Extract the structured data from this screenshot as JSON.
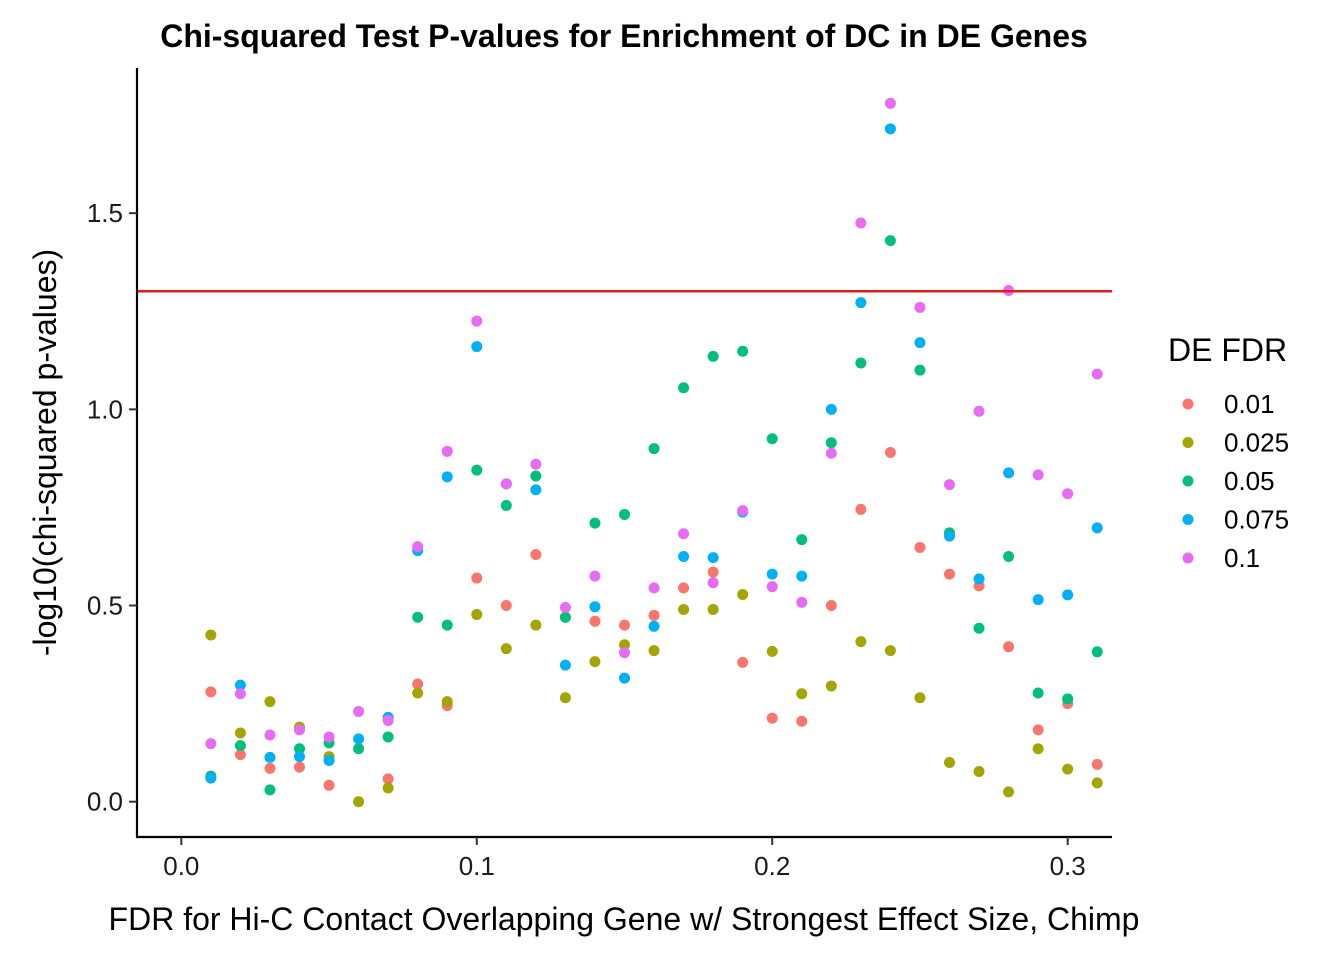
{
  "chart_data": {
    "type": "scatter",
    "title": "Chi-squared Test P-values for Enrichment of DC in DE Genes",
    "xlabel": "FDR for Hi-C Contact Overlapping Gene w/ Strongest Effect Size, Chimp",
    "ylabel": "-log10(chi-squared p-values)",
    "xlim": [
      -0.015,
      0.315
    ],
    "ylim": [
      -0.09,
      1.87
    ],
    "x_ticks": [
      0.0,
      0.1,
      0.2,
      0.3
    ],
    "x_tick_labels": [
      "0.0",
      "0.1",
      "0.2",
      "0.3"
    ],
    "y_ticks": [
      0.0,
      0.5,
      1.0,
      1.5
    ],
    "y_tick_labels": [
      "0.0",
      "0.5",
      "1.0",
      "1.5"
    ],
    "grid": false,
    "legend_placement": "right",
    "legend_title": "DE FDR",
    "reference_line": {
      "y": 1.301,
      "color": "#e31a1c"
    },
    "x": [
      0.01,
      0.02,
      0.03,
      0.04,
      0.05,
      0.06,
      0.07,
      0.08,
      0.09,
      0.1,
      0.11,
      0.12,
      0.13,
      0.14,
      0.15,
      0.16,
      0.17,
      0.18,
      0.19,
      0.2,
      0.21,
      0.22,
      0.23,
      0.24,
      0.25,
      0.26,
      0.27,
      0.28,
      0.29,
      0.3,
      0.31
    ],
    "series": [
      {
        "name": "0.01",
        "color": "#f8766d",
        "values": [
          0.28,
          0.12,
          0.085,
          0.088,
          0.042,
          null,
          0.058,
          0.3,
          0.245,
          0.57,
          0.5,
          0.63,
          0.47,
          0.46,
          0.45,
          0.475,
          0.545,
          0.585,
          0.355,
          0.213,
          0.205,
          0.5,
          0.745,
          0.89,
          0.648,
          0.58,
          0.55,
          0.395,
          0.183,
          0.25,
          0.095
        ]
      },
      {
        "name": "0.025",
        "color": "#a3a500",
        "values": [
          0.425,
          0.175,
          0.255,
          0.19,
          0.115,
          0.0,
          0.035,
          0.277,
          0.255,
          0.477,
          0.39,
          0.45,
          0.265,
          0.357,
          0.4,
          0.385,
          0.49,
          0.49,
          0.528,
          0.383,
          0.275,
          0.295,
          0.408,
          0.385,
          0.265,
          0.1,
          0.077,
          0.025,
          0.135,
          0.083,
          0.048
        ]
      },
      {
        "name": "0.05",
        "color": "#00bf7d",
        "values": [
          0.065,
          0.143,
          0.03,
          0.135,
          0.15,
          0.135,
          0.165,
          0.47,
          0.45,
          0.845,
          0.755,
          0.83,
          0.47,
          0.71,
          0.732,
          0.9,
          1.055,
          1.135,
          1.148,
          0.925,
          0.668,
          0.915,
          1.118,
          1.43,
          1.1,
          0.685,
          0.442,
          0.625,
          0.277,
          0.262,
          0.382
        ]
      },
      {
        "name": "0.075",
        "color": "#00b0f6",
        "values": [
          0.06,
          0.297,
          0.113,
          0.115,
          0.105,
          0.16,
          0.215,
          0.64,
          0.828,
          1.16,
          0.81,
          0.795,
          0.348,
          0.497,
          0.315,
          0.447,
          0.625,
          0.622,
          0.738,
          0.58,
          0.575,
          1.0,
          1.272,
          1.715,
          1.17,
          0.677,
          0.568,
          0.838,
          0.515,
          0.527,
          0.698
        ]
      },
      {
        "name": "0.1",
        "color": "#e76bf3",
        "values": [
          0.148,
          0.275,
          0.17,
          0.183,
          0.165,
          0.23,
          0.207,
          0.65,
          0.893,
          1.225,
          0.81,
          0.86,
          0.495,
          0.575,
          0.38,
          0.545,
          0.683,
          0.558,
          0.742,
          0.548,
          0.508,
          0.888,
          1.475,
          1.78,
          1.26,
          0.808,
          0.995,
          1.303,
          0.833,
          0.785,
          1.09
        ]
      }
    ]
  }
}
